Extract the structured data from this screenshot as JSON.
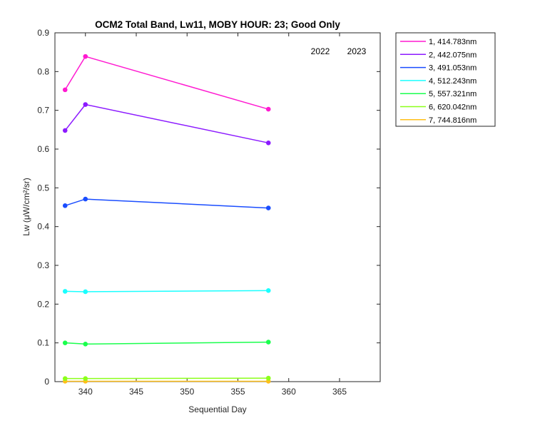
{
  "chart_data": {
    "type": "line",
    "title": "OCM2 Total Band,  Lw11, MOBY HOUR: 23;  Good Only",
    "xlabel": "Sequential Day",
    "ylabel": "Lw (μW/cm²/sr)",
    "xlim": [
      337,
      369
    ],
    "ylim": [
      0,
      0.9
    ],
    "xticks": [
      340,
      345,
      350,
      355,
      360,
      365
    ],
    "yticks": [
      0,
      0.1,
      0.2,
      0.3,
      0.4,
      0.5,
      0.6,
      0.7,
      0.8,
      0.9
    ],
    "year_labels": [
      "2022",
      "2023"
    ],
    "grid": false,
    "legend_position": "outside-top-right",
    "series": [
      {
        "name": "1, 414.783nm",
        "color": "#ff1ad1",
        "x": [
          338,
          340,
          358
        ],
        "y": [
          0.753,
          0.839,
          0.703
        ]
      },
      {
        "name": "2, 442.075nm",
        "color": "#8c1aff",
        "x": [
          338,
          340,
          358
        ],
        "y": [
          0.648,
          0.715,
          0.616
        ]
      },
      {
        "name": "3, 491.053nm",
        "color": "#1a4dff",
        "x": [
          338,
          340,
          358
        ],
        "y": [
          0.454,
          0.471,
          0.448
        ]
      },
      {
        "name": "4, 512.243nm",
        "color": "#1affff",
        "x": [
          338,
          340,
          358
        ],
        "y": [
          0.233,
          0.232,
          0.235
        ]
      },
      {
        "name": "5, 557.321nm",
        "color": "#1aff4d",
        "x": [
          338,
          340,
          358
        ],
        "y": [
          0.1,
          0.097,
          0.102
        ]
      },
      {
        "name": "6, 620.042nm",
        "color": "#8cff1a",
        "x": [
          338,
          340,
          358
        ],
        "y": [
          0.008,
          0.008,
          0.009
        ]
      },
      {
        "name": "7, 744.816nm",
        "color": "#ffbf1a",
        "x": [
          338,
          340,
          358
        ],
        "y": [
          0.001,
          0.001,
          0.001
        ]
      }
    ]
  }
}
